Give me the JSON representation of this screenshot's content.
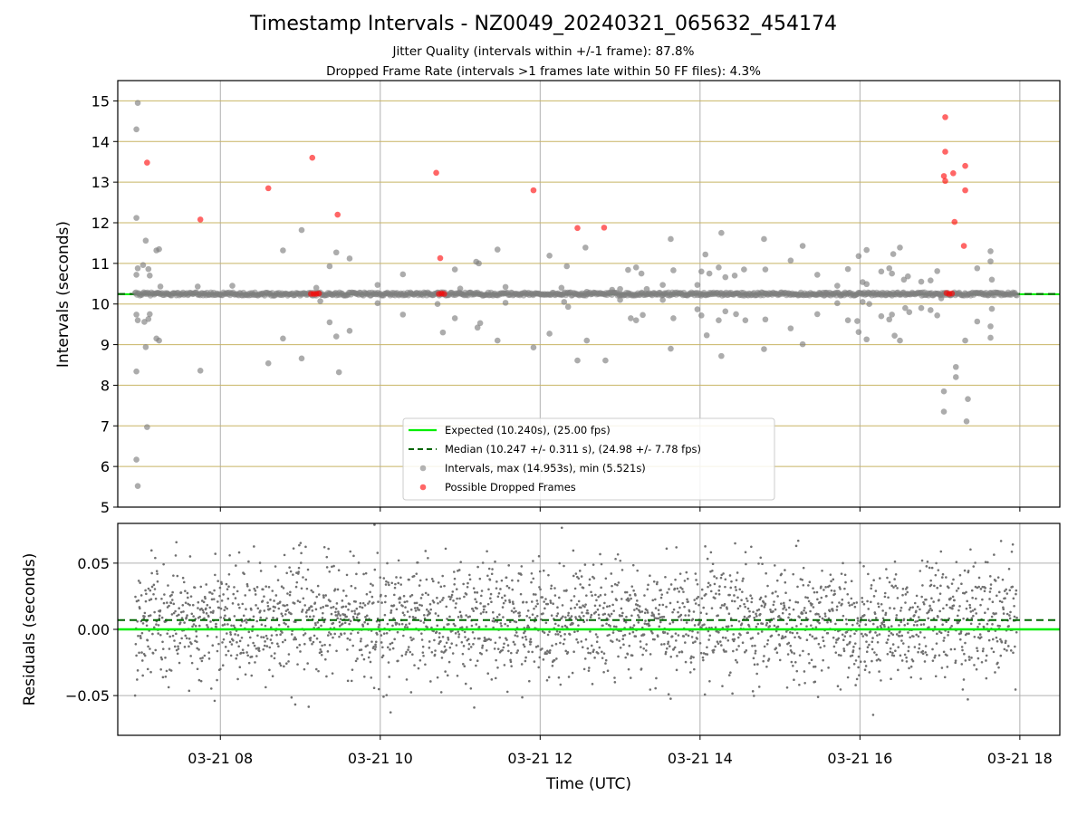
{
  "title": "Timestamp Intervals - NZ0049_20240321_065632_454174",
  "subtitle_1": "Jitter Quality (intervals within +/-1 frame): 87.8%",
  "subtitle_2": "Dropped Frame Rate (intervals >1 frames late within 50 FF files): 4.3%",
  "colors": {
    "expected": "#00ee00",
    "median": "#006400",
    "intervals": "#808080",
    "dropped": "#ff0000",
    "hgrid_top": "#c8b464",
    "grid": "#b0b0b0"
  },
  "chart_data": [
    {
      "type": "scatter",
      "title": "",
      "xlabel": "",
      "ylabel": "Intervals (seconds)",
      "xlim": [
        "03-21 06:43",
        "03-21 18:30"
      ],
      "ylim": [
        5,
        15.5
      ],
      "yticks": [
        "5",
        "6",
        "7",
        "8",
        "9",
        "10",
        "11",
        "12",
        "13",
        "14",
        "15"
      ],
      "grid": true,
      "legend_position": "lower center",
      "expected_line": {
        "value": 10.24,
        "label": "Expected (10.240s), (25.00 fps)"
      },
      "median_line": {
        "value": 10.247,
        "label": "Median (10.247 +/- 0.311 s), (24.98 +/- 7.78 fps)"
      },
      "series": [
        {
          "name": "Intervals, max (14.953s), min (5.521s)",
          "points": [
            [
              "03-21 06:58",
              14.95
            ],
            [
              "03-21 06:57",
              14.3
            ],
            [
              "03-21 06:57",
              12.12
            ],
            [
              "03-21 06:57",
              10.72
            ],
            [
              "03-21 06:58",
              10.88
            ],
            [
              "03-21 06:57",
              9.74
            ],
            [
              "03-21 06:58",
              9.6
            ],
            [
              "03-21 06:57",
              8.34
            ],
            [
              "03-21 06:57",
              6.17
            ],
            [
              "03-21 06:58",
              5.52
            ],
            [
              "03-21 07:02",
              10.96
            ],
            [
              "03-21 07:03",
              9.56
            ],
            [
              "03-21 07:04",
              11.56
            ],
            [
              "03-21 07:04",
              8.94
            ],
            [
              "03-21 07:05",
              6.97
            ],
            [
              "03-21 07:06",
              9.63
            ],
            [
              "03-21 07:07",
              9.75
            ],
            [
              "03-21 07:06",
              10.86
            ],
            [
              "03-21 07:07",
              10.7
            ],
            [
              "03-21 07:12",
              11.32
            ],
            [
              "03-21 07:14",
              11.35
            ],
            [
              "03-21 07:12",
              9.15
            ],
            [
              "03-21 07:14",
              9.1
            ],
            [
              "03-21 07:15",
              10.43
            ],
            [
              "03-21 07:43",
              10.43
            ],
            [
              "03-21 07:45",
              8.36
            ],
            [
              "03-21 08:09",
              10.45
            ],
            [
              "03-21 08:36",
              8.54
            ],
            [
              "03-21 08:47",
              11.32
            ],
            [
              "03-21 08:47",
              9.15
            ],
            [
              "03-21 09:01",
              8.66
            ],
            [
              "03-21 09:01",
              11.82
            ],
            [
              "03-21 09:15",
              10.07
            ],
            [
              "03-21 09:12",
              10.4
            ],
            [
              "03-21 09:22",
              10.93
            ],
            [
              "03-21 09:22",
              9.55
            ],
            [
              "03-21 09:27",
              11.27
            ],
            [
              "03-21 09:27",
              9.2
            ],
            [
              "03-21 09:29",
              8.32
            ],
            [
              "03-21 09:37",
              11.12
            ],
            [
              "03-21 09:37",
              9.34
            ],
            [
              "03-21 09:58",
              10.47
            ],
            [
              "03-21 09:58",
              10.02
            ],
            [
              "03-21 10:17",
              10.73
            ],
            [
              "03-21 10:17",
              9.74
            ],
            [
              "03-21 10:43",
              10.0
            ],
            [
              "03-21 10:47",
              9.3
            ],
            [
              "03-21 10:56",
              10.85
            ],
            [
              "03-21 10:56",
              9.65
            ],
            [
              "03-21 11:00",
              10.38
            ],
            [
              "03-21 11:12",
              11.04
            ],
            [
              "03-21 11:14",
              11.0
            ],
            [
              "03-21 11:13",
              9.42
            ],
            [
              "03-21 11:15",
              9.53
            ],
            [
              "03-21 11:28",
              11.34
            ],
            [
              "03-21 11:28",
              9.1
            ],
            [
              "03-21 11:34",
              10.42
            ],
            [
              "03-21 11:34",
              10.03
            ],
            [
              "03-21 11:55",
              8.93
            ],
            [
              "03-21 12:07",
              11.19
            ],
            [
              "03-21 12:07",
              9.27
            ],
            [
              "03-21 12:16",
              10.4
            ],
            [
              "03-21 12:20",
              10.93
            ],
            [
              "03-21 12:21",
              9.93
            ],
            [
              "03-21 12:18",
              10.05
            ],
            [
              "03-21 12:28",
              8.61
            ],
            [
              "03-21 12:34",
              11.39
            ],
            [
              "03-21 12:35",
              9.1
            ],
            [
              "03-21 12:35",
              10.3
            ],
            [
              "03-21 12:49",
              8.61
            ],
            [
              "03-21 12:54",
              10.35
            ],
            [
              "03-21 13:00",
              10.37
            ],
            [
              "03-21 13:00",
              10.1
            ],
            [
              "03-21 13:06",
              10.84
            ],
            [
              "03-21 13:08",
              9.65
            ],
            [
              "03-21 13:12",
              10.9
            ],
            [
              "03-21 13:12",
              9.6
            ],
            [
              "03-21 13:16",
              10.75
            ],
            [
              "03-21 13:17",
              9.73
            ],
            [
              "03-21 13:20",
              10.37
            ],
            [
              "03-21 13:32",
              10.47
            ],
            [
              "03-21 13:32",
              10.1
            ],
            [
              "03-21 13:38",
              11.6
            ],
            [
              "03-21 13:38",
              8.9
            ],
            [
              "03-21 13:40",
              10.83
            ],
            [
              "03-21 13:40",
              9.65
            ],
            [
              "03-21 13:58",
              10.47
            ],
            [
              "03-21 13:58",
              9.87
            ],
            [
              "03-21 14:01",
              10.8
            ],
            [
              "03-21 14:01",
              9.72
            ],
            [
              "03-21 14:04",
              11.22
            ],
            [
              "03-21 14:05",
              9.23
            ],
            [
              "03-21 14:07",
              10.75
            ],
            [
              "03-21 14:16",
              11.75
            ],
            [
              "03-21 14:16",
              8.72
            ],
            [
              "03-21 14:14",
              10.9
            ],
            [
              "03-21 14:14",
              9.6
            ],
            [
              "03-21 14:19",
              10.66
            ],
            [
              "03-21 14:19",
              9.82
            ],
            [
              "03-21 14:26",
              10.7
            ],
            [
              "03-21 14:27",
              9.75
            ],
            [
              "03-21 14:33",
              10.85
            ],
            [
              "03-21 14:34",
              9.6
            ],
            [
              "03-21 14:48",
              11.6
            ],
            [
              "03-21 14:48",
              8.89
            ],
            [
              "03-21 14:49",
              10.85
            ],
            [
              "03-21 14:49",
              9.62
            ],
            [
              "03-21 15:08",
              11.07
            ],
            [
              "03-21 15:08",
              9.4
            ],
            [
              "03-21 15:17",
              11.43
            ],
            [
              "03-21 15:17",
              9.01
            ],
            [
              "03-21 15:28",
              10.72
            ],
            [
              "03-21 15:28",
              9.75
            ],
            [
              "03-21 15:34",
              10.28
            ],
            [
              "03-21 15:43",
              10.45
            ],
            [
              "03-21 15:43",
              10.02
            ],
            [
              "03-21 15:51",
              10.86
            ],
            [
              "03-21 15:51",
              9.6
            ],
            [
              "03-21 15:59",
              11.18
            ],
            [
              "03-21 15:59",
              9.31
            ],
            [
              "03-21 15:58",
              9.58
            ],
            [
              "03-21 16:02",
              10.54
            ],
            [
              "03-21 16:02",
              10.05
            ],
            [
              "03-21 16:05",
              11.33
            ],
            [
              "03-21 16:05",
              9.13
            ],
            [
              "03-21 16:05",
              10.49
            ],
            [
              "03-21 16:07",
              10.0
            ],
            [
              "03-21 16:16",
              10.8
            ],
            [
              "03-21 16:16",
              9.7
            ],
            [
              "03-21 16:22",
              10.88
            ],
            [
              "03-21 16:22",
              9.62
            ],
            [
              "03-21 16:24",
              10.75
            ],
            [
              "03-21 16:24",
              9.74
            ],
            [
              "03-21 16:25",
              11.23
            ],
            [
              "03-21 16:26",
              9.22
            ],
            [
              "03-21 16:30",
              11.39
            ],
            [
              "03-21 16:30",
              9.1
            ],
            [
              "03-21 16:33",
              10.6
            ],
            [
              "03-21 16:34",
              9.9
            ],
            [
              "03-21 16:36",
              10.68
            ],
            [
              "03-21 16:37",
              9.8
            ],
            [
              "03-21 16:46",
              10.55
            ],
            [
              "03-21 16:46",
              9.9
            ],
            [
              "03-21 16:53",
              10.58
            ],
            [
              "03-21 16:53",
              9.85
            ],
            [
              "03-21 16:58",
              10.81
            ],
            [
              "03-21 16:58",
              9.72
            ],
            [
              "03-21 17:01",
              10.14
            ],
            [
              "03-21 17:03",
              7.85
            ],
            [
              "03-21 17:03",
              7.35
            ],
            [
              "03-21 17:12",
              8.45
            ],
            [
              "03-21 17:12",
              8.2
            ],
            [
              "03-21 17:21",
              7.66
            ],
            [
              "03-21 17:20",
              7.11
            ],
            [
              "03-21 17:19",
              9.1
            ],
            [
              "03-21 17:28",
              10.88
            ],
            [
              "03-21 17:28",
              9.57
            ],
            [
              "03-21 17:38",
              11.3
            ],
            [
              "03-21 17:38",
              11.05
            ],
            [
              "03-21 17:39",
              10.6
            ],
            [
              "03-21 17:38",
              9.45
            ],
            [
              "03-21 17:38",
              9.17
            ],
            [
              "03-21 17:39",
              9.88
            ]
          ]
        },
        {
          "name": "Possible Dropped Frames",
          "points": [
            [
              "03-21 07:05",
              13.48
            ],
            [
              "03-21 07:45",
              12.08
            ],
            [
              "03-21 08:36",
              12.85
            ],
            [
              "03-21 09:09",
              13.6
            ],
            [
              "03-21 09:28",
              12.2
            ],
            [
              "03-21 10:42",
              13.23
            ],
            [
              "03-21 10:45",
              11.13
            ],
            [
              "03-21 11:55",
              12.8
            ],
            [
              "03-21 12:28",
              11.87
            ],
            [
              "03-21 12:48",
              11.88
            ],
            [
              "03-21 17:04",
              14.6
            ],
            [
              "03-21 17:04",
              13.75
            ],
            [
              "03-21 17:03",
              13.15
            ],
            [
              "03-21 17:04",
              13.03
            ],
            [
              "03-21 17:10",
              13.22
            ],
            [
              "03-21 17:19",
              13.4
            ],
            [
              "03-21 17:19",
              12.8
            ],
            [
              "03-21 17:11",
              12.02
            ],
            [
              "03-21 17:18",
              11.43
            ],
            [
              "03-21 09:08",
              10.25
            ],
            [
              "03-21 09:10",
              10.25
            ],
            [
              "03-21 09:12",
              10.25
            ],
            [
              "03-21 09:14",
              10.26
            ],
            [
              "03-21 10:44",
              10.25
            ],
            [
              "03-21 10:46",
              10.26
            ],
            [
              "03-21 10:48",
              10.25
            ],
            [
              "03-21 17:05",
              10.27
            ],
            [
              "03-21 17:07",
              10.25
            ],
            [
              "03-21 17:09",
              10.26
            ]
          ]
        }
      ]
    },
    {
      "type": "scatter",
      "title": "",
      "xlabel": "Time (UTC)",
      "ylabel": "Residuals (seconds)",
      "xlim": [
        "03-21 06:43",
        "03-21 18:30"
      ],
      "ylim": [
        -0.08,
        0.08
      ],
      "yticks": [
        "−0.05",
        "0.00",
        "0.05"
      ],
      "xticks": [
        "03-21 08",
        "03-21 10",
        "03-21 12",
        "03-21 14",
        "03-21 16",
        "03-21 18"
      ],
      "grid": true,
      "expected_residual": 0.0,
      "median_residual": 0.007,
      "series": [
        {
          "name": "",
          "points": []
        }
      ]
    }
  ],
  "legend": [
    {
      "label": "Expected (10.240s), (25.00 fps)",
      "style": "solid-line"
    },
    {
      "label": "Median (10.247 +/- 0.311 s), (24.98 +/- 7.78 fps)",
      "style": "dashed-line"
    },
    {
      "label": "Intervals, max (14.953s), min (5.521s)",
      "style": "grey-dot"
    },
    {
      "label": "Possible Dropped Frames",
      "style": "red-dot"
    }
  ]
}
